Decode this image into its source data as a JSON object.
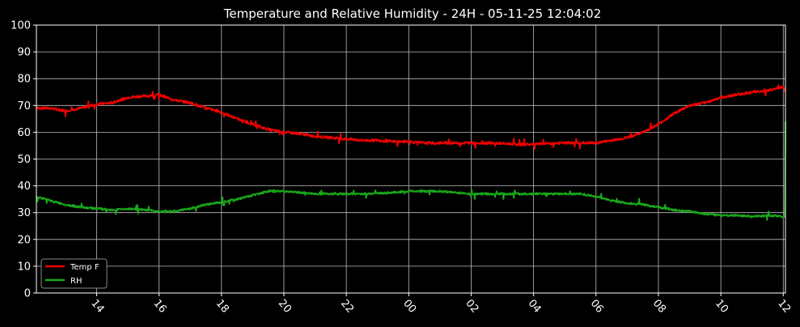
{
  "chart_data": {
    "type": "line",
    "title": "Temperature and Relative Humidity - 24H - 05-11-25 12:04:02",
    "xlabel": "",
    "ylabel": "",
    "x_ticks": [
      "14",
      "16",
      "18",
      "20",
      "22",
      "00",
      "02",
      "04",
      "06",
      "08",
      "10",
      "12"
    ],
    "x_tick_hours": [
      14,
      16,
      18,
      20,
      22,
      24,
      26,
      28,
      30,
      32,
      34,
      36
    ],
    "xlim_hours": [
      12.07,
      36.07
    ],
    "ylim": [
      0,
      100
    ],
    "y_ticks": [
      0,
      10,
      20,
      30,
      40,
      50,
      60,
      70,
      80,
      90,
      100
    ],
    "grid": true,
    "legend_position": "lower-left",
    "series": [
      {
        "name": "Temp F",
        "color": "#ee0000",
        "points": [
          [
            12.07,
            69
          ],
          [
            12.5,
            69
          ],
          [
            13,
            68
          ],
          [
            13.5,
            69
          ],
          [
            14,
            70.5
          ],
          [
            14.5,
            71
          ],
          [
            15,
            73
          ],
          [
            15.5,
            73.5
          ],
          [
            16,
            74
          ],
          [
            16.5,
            72
          ],
          [
            17,
            71
          ],
          [
            17.5,
            69
          ],
          [
            18,
            67.5
          ],
          [
            18.5,
            65
          ],
          [
            19,
            63
          ],
          [
            19.5,
            61
          ],
          [
            20,
            60
          ],
          [
            20.5,
            59.5
          ],
          [
            21,
            58.5
          ],
          [
            21.5,
            58
          ],
          [
            22,
            57.5
          ],
          [
            22.5,
            57
          ],
          [
            23,
            57
          ],
          [
            23.5,
            56.5
          ],
          [
            24,
            56.5
          ],
          [
            24.5,
            56
          ],
          [
            25,
            56
          ],
          [
            25.5,
            56
          ],
          [
            26,
            56
          ],
          [
            26.5,
            56
          ],
          [
            27,
            55.8
          ],
          [
            27.5,
            55.5
          ],
          [
            28,
            55.5
          ],
          [
            28.5,
            55.8
          ],
          [
            29,
            56
          ],
          [
            29.5,
            56
          ],
          [
            30,
            56
          ],
          [
            30.5,
            57
          ],
          [
            31,
            58
          ],
          [
            31.5,
            60
          ],
          [
            32,
            63
          ],
          [
            32.5,
            67
          ],
          [
            33,
            70
          ],
          [
            33.5,
            71
          ],
          [
            34,
            73
          ],
          [
            34.5,
            74
          ],
          [
            35,
            75
          ],
          [
            35.5,
            75.5
          ],
          [
            36,
            77
          ],
          [
            36.07,
            75
          ]
        ]
      },
      {
        "name": "RH",
        "color": "#19a819",
        "points": [
          [
            12.07,
            36
          ],
          [
            12.5,
            34.5
          ],
          [
            13,
            33
          ],
          [
            13.5,
            32
          ],
          [
            14,
            31.5
          ],
          [
            14.5,
            31
          ],
          [
            15,
            31.5
          ],
          [
            15.5,
            31
          ],
          [
            16,
            30.5
          ],
          [
            16.5,
            30.5
          ],
          [
            17,
            31.5
          ],
          [
            17.5,
            33
          ],
          [
            18,
            34
          ],
          [
            18.5,
            35
          ],
          [
            19,
            36.5
          ],
          [
            19.5,
            38
          ],
          [
            20,
            38
          ],
          [
            20.5,
            37.5
          ],
          [
            21,
            37
          ],
          [
            21.5,
            37
          ],
          [
            22,
            37
          ],
          [
            22.5,
            37
          ],
          [
            23,
            37.2
          ],
          [
            23.5,
            37.5
          ],
          [
            24,
            38
          ],
          [
            24.5,
            38
          ],
          [
            25,
            38
          ],
          [
            25.5,
            37.5
          ],
          [
            26,
            37
          ],
          [
            26.5,
            37
          ],
          [
            27,
            37
          ],
          [
            27.5,
            37
          ],
          [
            28,
            37
          ],
          [
            28.5,
            37
          ],
          [
            29,
            37
          ],
          [
            29.5,
            37
          ],
          [
            30,
            36
          ],
          [
            30.5,
            34.5
          ],
          [
            31,
            33.5
          ],
          [
            31.5,
            33
          ],
          [
            32,
            32
          ],
          [
            32.5,
            31
          ],
          [
            33,
            30.5
          ],
          [
            33.5,
            29.5
          ],
          [
            34,
            29
          ],
          [
            34.5,
            29
          ],
          [
            35,
            28.5
          ],
          [
            35.5,
            29
          ],
          [
            36,
            28.5
          ],
          [
            36.05,
            28.5
          ],
          [
            36.07,
            64
          ]
        ]
      }
    ]
  }
}
